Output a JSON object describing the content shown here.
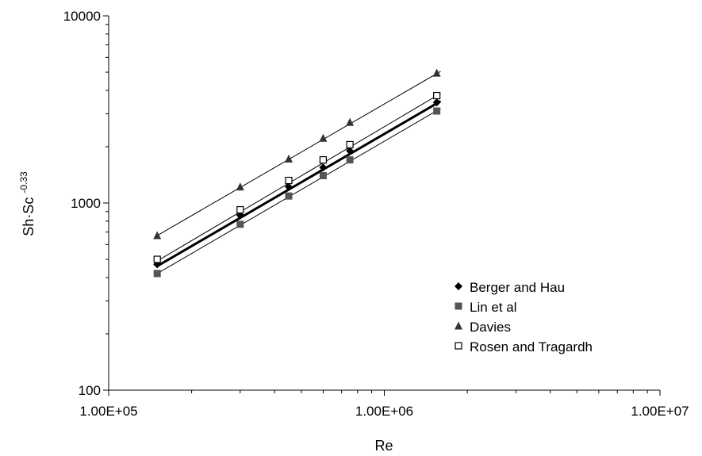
{
  "chart_data": {
    "type": "scatter",
    "title": "",
    "xlabel": "Re",
    "ylabel_base": "Sh·Sc",
    "ylabel_exponent": "-0.33",
    "x_scale": "log",
    "y_scale": "log",
    "xlim": [
      100000,
      10000000
    ],
    "ylim": [
      100,
      10000
    ],
    "x_ticks": [
      {
        "value": 100000,
        "label": "1.00E+05"
      },
      {
        "value": 1000000,
        "label": "1.00E+06"
      },
      {
        "value": 10000000,
        "label": "1.00E+07"
      }
    ],
    "y_ticks": [
      {
        "value": 100,
        "label": "100"
      },
      {
        "value": 1000,
        "label": "1000"
      },
      {
        "value": 10000,
        "label": "10000"
      }
    ],
    "grid": false,
    "legend_position": "bottom-right",
    "series": [
      {
        "name": "Berger and Hau",
        "marker": "diamond",
        "color": "#000000",
        "x": [
          150000,
          300000,
          450000,
          600000,
          750000,
          1550000
        ],
        "y": [
          470,
          860,
          1220,
          1550,
          1900,
          3450
        ],
        "fit_line": {
          "x": [
            150000,
            1600000
          ],
          "y": [
            460,
            3500
          ],
          "color": "#000000",
          "weight": "bold"
        }
      },
      {
        "name": "Lin et al",
        "marker": "square",
        "color": "#555555",
        "x": [
          150000,
          300000,
          450000,
          600000,
          750000,
          1550000
        ],
        "y": [
          420,
          770,
          1090,
          1400,
          1700,
          3100
        ],
        "fit_line": {
          "x": [
            150000,
            1600000
          ],
          "y": [
            420,
            3200
          ],
          "color": "#000000",
          "weight": "thin"
        }
      },
      {
        "name": "Davies",
        "marker": "triangle",
        "color": "#333333",
        "x": [
          150000,
          300000,
          450000,
          600000,
          750000,
          1550000
        ],
        "y": [
          670,
          1220,
          1720,
          2220,
          2700,
          4950
        ],
        "fit_line": {
          "x": [
            150000,
            1600000
          ],
          "y": [
            670,
            5050
          ],
          "color": "#000000",
          "weight": "thin"
        }
      },
      {
        "name": "Rosen and Tragardh",
        "marker": "open-square",
        "color": "#000000",
        "x": [
          150000,
          300000,
          450000,
          600000,
          750000,
          1550000
        ],
        "y": [
          500,
          920,
          1320,
          1700,
          2050,
          3750
        ],
        "fit_line": {
          "x": [
            150000,
            1600000
          ],
          "y": [
            490,
            3850
          ],
          "color": "#000000",
          "weight": "thin"
        }
      }
    ]
  }
}
